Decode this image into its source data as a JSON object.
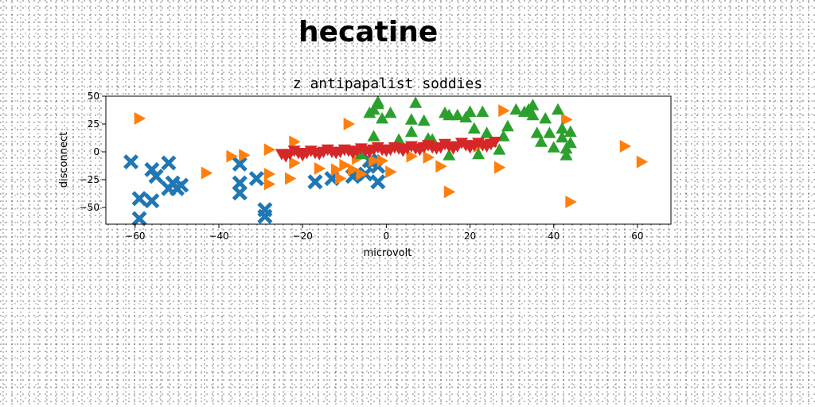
{
  "page": {
    "heading": "hecatine"
  },
  "chart_data": {
    "type": "scatter",
    "title": "z antipapalist soddies",
    "xlabel": "microvolt",
    "ylabel": "disconnect",
    "xlim": [
      -67,
      68
    ],
    "ylim": [
      -65,
      50
    ],
    "xticks": [
      -60,
      -40,
      -20,
      0,
      20,
      40,
      60
    ],
    "yticks": [
      50,
      25,
      0,
      -25,
      -50
    ],
    "grid": false,
    "series": [
      {
        "marker": "x",
        "color": "#1f77b4",
        "points": [
          [
            -61,
            -9
          ],
          [
            -59,
            -42
          ],
          [
            -59,
            -60
          ],
          [
            -56,
            -44
          ],
          [
            -56,
            -16
          ],
          [
            -55,
            -22
          ],
          [
            -52,
            -10
          ],
          [
            -52,
            -33
          ],
          [
            -51,
            -28
          ],
          [
            -50,
            -33
          ],
          [
            -49,
            -30
          ],
          [
            -35,
            -11
          ],
          [
            -35,
            -28
          ],
          [
            -35,
            -37
          ],
          [
            -31,
            -24
          ],
          [
            -29,
            -52
          ],
          [
            -29,
            -58
          ],
          [
            -17,
            -27
          ],
          [
            -13,
            -24
          ],
          [
            -8,
            -22
          ],
          [
            -5,
            -20
          ],
          [
            -3,
            -9
          ],
          [
            -2,
            -13
          ],
          [
            -2,
            -27
          ],
          [
            -4,
            -8
          ]
        ]
      },
      {
        "marker": "triangle-right",
        "color": "#ff7f0e",
        "points": [
          [
            -59,
            30
          ],
          [
            -43,
            -19
          ],
          [
            -37,
            -4
          ],
          [
            -34,
            -3
          ],
          [
            -28,
            2
          ],
          [
            -28,
            -20
          ],
          [
            -28,
            -29
          ],
          [
            -23,
            -24
          ],
          [
            -22,
            9
          ],
          [
            -22,
            -10
          ],
          [
            -16,
            -15
          ],
          [
            -12,
            -16
          ],
          [
            -11,
            -24
          ],
          [
            -10,
            -12
          ],
          [
            -9,
            25
          ],
          [
            -8,
            -16
          ],
          [
            -7,
            -6
          ],
          [
            -6,
            -20
          ],
          [
            -3,
            -8
          ],
          [
            -1,
            -8
          ],
          [
            1,
            -18
          ],
          [
            6,
            -4
          ],
          [
            10,
            -5
          ],
          [
            13,
            -13
          ],
          [
            15,
            -36
          ],
          [
            22,
            5
          ],
          [
            27,
            -14
          ],
          [
            28,
            37
          ],
          [
            43,
            29
          ],
          [
            44,
            -45
          ],
          [
            57,
            5
          ],
          [
            61,
            -9
          ]
        ]
      },
      {
        "marker": "triangle-up",
        "color": "#2ca02c",
        "points": [
          [
            -6,
            -2
          ],
          [
            -4,
            35
          ],
          [
            -3,
            38
          ],
          [
            -2,
            45
          ],
          [
            -2,
            43
          ],
          [
            -3,
            14
          ],
          [
            -1,
            30
          ],
          [
            1,
            35
          ],
          [
            3,
            11
          ],
          [
            4,
            4
          ],
          [
            6,
            29
          ],
          [
            6,
            18
          ],
          [
            7,
            44
          ],
          [
            9,
            28
          ],
          [
            10,
            12
          ],
          [
            11,
            11
          ],
          [
            14,
            35
          ],
          [
            15,
            33
          ],
          [
            15,
            -3
          ],
          [
            17,
            33
          ],
          [
            19,
            31
          ],
          [
            20,
            36
          ],
          [
            21,
            21
          ],
          [
            22,
            -2
          ],
          [
            23,
            36
          ],
          [
            24,
            17
          ],
          [
            25,
            9
          ],
          [
            27,
            2
          ],
          [
            28,
            14
          ],
          [
            29,
            23
          ],
          [
            31,
            38
          ],
          [
            33,
            36
          ],
          [
            34,
            38
          ],
          [
            35,
            42
          ],
          [
            35,
            33
          ],
          [
            36,
            17
          ],
          [
            37,
            9
          ],
          [
            38,
            30
          ],
          [
            39,
            17
          ],
          [
            40,
            4
          ],
          [
            41,
            38
          ],
          [
            42,
            13
          ],
          [
            42,
            21
          ],
          [
            43,
            3
          ],
          [
            44,
            8
          ],
          [
            44,
            18
          ],
          [
            43,
            -3
          ]
        ]
      },
      {
        "marker": "triangle-down",
        "color": "#d62728",
        "points": [
          [
            -25,
            -2
          ],
          [
            -23,
            -2
          ],
          [
            -21,
            -1
          ],
          [
            -19,
            -1
          ],
          [
            -17,
            -1
          ],
          [
            -15,
            0
          ],
          [
            -13,
            0
          ],
          [
            -11,
            0
          ],
          [
            -9,
            1
          ],
          [
            -7,
            1
          ],
          [
            -5,
            1
          ],
          [
            -3,
            2
          ],
          [
            -1,
            2
          ],
          [
            1,
            2
          ],
          [
            3,
            3
          ],
          [
            5,
            3
          ],
          [
            7,
            3
          ],
          [
            9,
            4
          ],
          [
            11,
            4
          ],
          [
            13,
            4
          ],
          [
            15,
            5
          ],
          [
            17,
            5
          ],
          [
            19,
            6
          ],
          [
            21,
            6
          ],
          [
            23,
            6
          ],
          [
            25,
            7
          ],
          [
            -24,
            -4
          ],
          [
            -20,
            -3
          ],
          [
            -16,
            -2
          ],
          [
            -12,
            -1
          ],
          [
            -8,
            -1
          ],
          [
            -4,
            0
          ],
          [
            0,
            1
          ],
          [
            4,
            1
          ],
          [
            8,
            2
          ],
          [
            12,
            3
          ],
          [
            16,
            3
          ],
          [
            20,
            4
          ],
          [
            24,
            5
          ],
          [
            -22,
            1
          ],
          [
            -18,
            1
          ],
          [
            -14,
            2
          ],
          [
            -10,
            2
          ],
          [
            -6,
            3
          ],
          [
            -2,
            4
          ],
          [
            2,
            4
          ],
          [
            6,
            5
          ],
          [
            10,
            6
          ],
          [
            14,
            7
          ],
          [
            18,
            8
          ],
          [
            22,
            8
          ],
          [
            26,
            9
          ]
        ]
      }
    ]
  }
}
